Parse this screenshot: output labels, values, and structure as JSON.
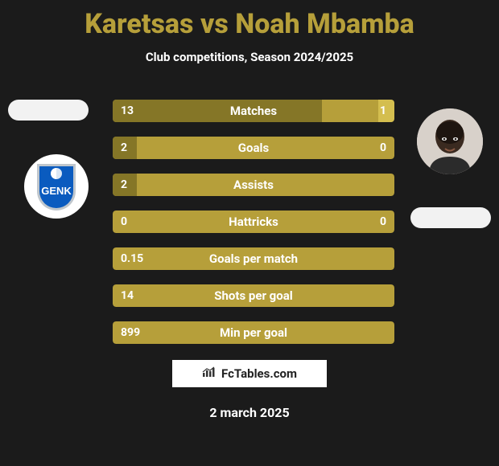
{
  "title": "Karetsas vs Noah Mbamba",
  "subtitle": "Club competitions, Season 2024/2025",
  "footer_date": "2 march 2025",
  "branding_text": "FcTables.com",
  "colors": {
    "background": "#1b1b1b",
    "title": "#b69f3a",
    "bar_bg": "#b69f3a",
    "bar_left_fill": "#857627",
    "bar_right_fill": "#d4be4f",
    "white": "#ffffff"
  },
  "barWidth": 350,
  "rows": [
    {
      "label": "Matches",
      "left_val": "13",
      "right_val": "1",
      "leftW": 260,
      "rightW": 20,
      "dual": true
    },
    {
      "label": "Goals",
      "left_val": "2",
      "right_val": "0",
      "leftW": 30,
      "rightW": 0,
      "dual": true
    },
    {
      "label": "Assists",
      "left_val": "2",
      "right_val": "",
      "leftW": 30,
      "rightW": 0,
      "dual": false
    },
    {
      "label": "Hattricks",
      "left_val": "0",
      "right_val": "0",
      "leftW": 0,
      "rightW": 0,
      "dual": true
    },
    {
      "label": "Goals per match",
      "left_val": "0.15",
      "right_val": "",
      "leftW": 0,
      "rightW": 0,
      "dual": false
    },
    {
      "label": "Shots per goal",
      "left_val": "14",
      "right_val": "",
      "leftW": 0,
      "rightW": 0,
      "dual": false
    },
    {
      "label": "Min per goal",
      "left_val": "899",
      "right_val": "",
      "leftW": 0,
      "rightW": 0,
      "dual": false
    }
  ],
  "club_left": {
    "name": "GENK",
    "shield_blue": "#0a5bbf",
    "shield_border": "#bfc6cc"
  }
}
